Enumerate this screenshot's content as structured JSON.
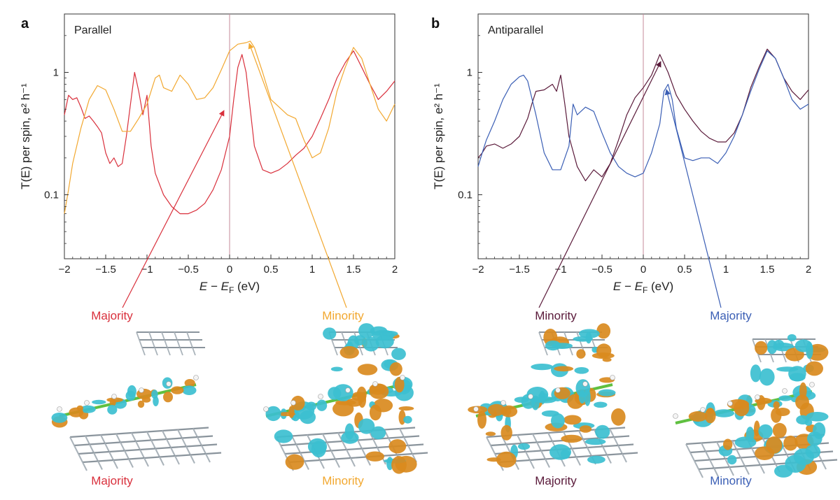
{
  "colors": {
    "red": "#d9303c",
    "orange": "#f2a830",
    "maroon": "#5a1a3a",
    "blue": "#3b5fb5",
    "cyan": "#3cbfd0",
    "gold": "#d98a1e"
  },
  "chart_data": [
    {
      "type": "line",
      "panel_letter": "a",
      "panel_title": "Parallel",
      "xlabel_prefix": "E − E",
      "xlabel_sub": "F",
      "xlabel_suffix": " (eV)",
      "ylabel_text": "T(E) per spin, e² h⁻¹",
      "xlim": [
        -2,
        2
      ],
      "ylim": [
        0.03,
        3
      ],
      "yscale": "log",
      "xticks": [
        "−2",
        "−1.5",
        "−1",
        "−0.5",
        "0",
        "0.5",
        "1",
        "1.5",
        "2"
      ],
      "yticks": [
        "0.1",
        "1"
      ],
      "fermi_line_x": 0,
      "series": [
        {
          "color": "#d9303c",
          "x": [
            -2.0,
            -1.95,
            -1.9,
            -1.85,
            -1.8,
            -1.75,
            -1.7,
            -1.65,
            -1.6,
            -1.55,
            -1.5,
            -1.45,
            -1.4,
            -1.35,
            -1.3,
            -1.25,
            -1.2,
            -1.15,
            -1.1,
            -1.05,
            -1.0,
            -0.95,
            -0.9,
            -0.8,
            -0.7,
            -0.6,
            -0.5,
            -0.4,
            -0.3,
            -0.2,
            -0.1,
            0.0,
            0.05,
            0.1,
            0.15,
            0.2,
            0.25,
            0.3,
            0.4,
            0.5,
            0.6,
            0.7,
            0.8,
            0.9,
            1.0,
            1.1,
            1.2,
            1.3,
            1.4,
            1.5,
            1.6,
            1.7,
            1.8,
            1.9,
            2.0
          ],
          "y": [
            0.45,
            0.65,
            0.6,
            0.62,
            0.52,
            0.42,
            0.44,
            0.4,
            0.36,
            0.32,
            0.22,
            0.18,
            0.2,
            0.17,
            0.18,
            0.3,
            0.55,
            1.0,
            0.7,
            0.45,
            0.65,
            0.25,
            0.15,
            0.1,
            0.08,
            0.07,
            0.07,
            0.075,
            0.085,
            0.11,
            0.16,
            0.3,
            0.6,
            1.1,
            1.4,
            1.0,
            0.5,
            0.25,
            0.16,
            0.15,
            0.16,
            0.18,
            0.21,
            0.24,
            0.3,
            0.42,
            0.6,
            0.9,
            1.2,
            1.5,
            1.1,
            0.8,
            0.6,
            0.7,
            0.85
          ]
        },
        {
          "color": "#f2a830",
          "x": [
            -2.0,
            -1.95,
            -1.9,
            -1.8,
            -1.7,
            -1.6,
            -1.5,
            -1.4,
            -1.3,
            -1.2,
            -1.1,
            -1.0,
            -0.9,
            -0.85,
            -0.8,
            -0.7,
            -0.6,
            -0.5,
            -0.4,
            -0.3,
            -0.2,
            -0.1,
            0.0,
            0.1,
            0.2,
            0.25,
            0.3,
            0.4,
            0.5,
            0.6,
            0.7,
            0.8,
            0.9,
            1.0,
            1.1,
            1.2,
            1.3,
            1.4,
            1.5,
            1.6,
            1.7,
            1.8,
            1.9,
            2.0
          ],
          "y": [
            0.07,
            0.11,
            0.18,
            0.35,
            0.6,
            0.78,
            0.72,
            0.5,
            0.33,
            0.33,
            0.42,
            0.55,
            0.9,
            0.95,
            0.75,
            0.7,
            0.95,
            0.8,
            0.6,
            0.62,
            0.75,
            1.05,
            1.5,
            1.7,
            1.75,
            1.8,
            1.6,
            1.0,
            0.6,
            0.52,
            0.45,
            0.42,
            0.28,
            0.2,
            0.22,
            0.35,
            0.7,
            1.1,
            1.6,
            1.3,
            0.8,
            0.5,
            0.4,
            0.55
          ]
        }
      ],
      "molecules": [
        {
          "label_top": "Majority",
          "label_bottom": "Majority",
          "color": "#d9303c"
        },
        {
          "label_top": "Minority",
          "label_bottom": "Minority",
          "color": "#f2a830"
        }
      ]
    },
    {
      "type": "line",
      "panel_letter": "b",
      "panel_title": "Antiparallel",
      "xlabel_prefix": "E − E",
      "xlabel_sub": "F",
      "xlabel_suffix": " (eV)",
      "ylabel_text": "T(E) per spin, e² h⁻¹",
      "xlim": [
        -2,
        2
      ],
      "ylim": [
        0.03,
        3
      ],
      "yscale": "log",
      "xticks": [
        "−2",
        "−1.5",
        "−1",
        "−0.5",
        "0",
        "0.5",
        "1",
        "1.5",
        "2"
      ],
      "yticks": [
        "0.1",
        "1"
      ],
      "fermi_line_x": 0,
      "series": [
        {
          "color": "#5a1a3a",
          "x": [
            -2.0,
            -1.95,
            -1.9,
            -1.8,
            -1.7,
            -1.6,
            -1.5,
            -1.4,
            -1.35,
            -1.3,
            -1.2,
            -1.1,
            -1.05,
            -1.0,
            -0.95,
            -0.9,
            -0.8,
            -0.7,
            -0.6,
            -0.5,
            -0.4,
            -0.3,
            -0.2,
            -0.1,
            0.0,
            0.1,
            0.2,
            0.3,
            0.4,
            0.5,
            0.6,
            0.7,
            0.8,
            0.9,
            1.0,
            1.1,
            1.2,
            1.3,
            1.4,
            1.5,
            1.6,
            1.7,
            1.8,
            1.9,
            2.0
          ],
          "y": [
            0.2,
            0.22,
            0.25,
            0.26,
            0.24,
            0.26,
            0.3,
            0.42,
            0.55,
            0.7,
            0.72,
            0.8,
            0.7,
            0.95,
            0.55,
            0.3,
            0.17,
            0.13,
            0.16,
            0.14,
            0.18,
            0.28,
            0.45,
            0.62,
            0.75,
            0.95,
            1.4,
            1.0,
            0.65,
            0.5,
            0.4,
            0.33,
            0.29,
            0.27,
            0.27,
            0.32,
            0.45,
            0.75,
            1.1,
            1.55,
            1.3,
            0.9,
            0.7,
            0.6,
            0.72
          ]
        },
        {
          "color": "#3b5fb5",
          "x": [
            -2.0,
            -1.95,
            -1.9,
            -1.8,
            -1.7,
            -1.6,
            -1.5,
            -1.45,
            -1.4,
            -1.3,
            -1.2,
            -1.1,
            -1.0,
            -0.9,
            -0.85,
            -0.8,
            -0.7,
            -0.6,
            -0.5,
            -0.4,
            -0.3,
            -0.2,
            -0.1,
            0.0,
            0.1,
            0.2,
            0.25,
            0.3,
            0.35,
            0.4,
            0.5,
            0.6,
            0.7,
            0.8,
            0.9,
            1.0,
            1.1,
            1.2,
            1.3,
            1.4,
            1.5,
            1.6,
            1.7,
            1.8,
            1.9,
            2.0
          ],
          "y": [
            0.17,
            0.22,
            0.28,
            0.4,
            0.6,
            0.8,
            0.92,
            0.95,
            0.85,
            0.45,
            0.22,
            0.16,
            0.16,
            0.25,
            0.55,
            0.45,
            0.52,
            0.48,
            0.32,
            0.22,
            0.17,
            0.15,
            0.14,
            0.15,
            0.22,
            0.38,
            0.7,
            0.8,
            0.6,
            0.35,
            0.2,
            0.19,
            0.2,
            0.2,
            0.18,
            0.22,
            0.3,
            0.45,
            0.7,
            1.05,
            1.5,
            1.3,
            0.9,
            0.6,
            0.5,
            0.55
          ]
        }
      ],
      "molecules": [
        {
          "label_top": "Minority",
          "label_bottom": "Majority",
          "color": "#5a1a3a"
        },
        {
          "label_top": "Majority",
          "label_bottom": "Minority",
          "color": "#3b5fb5"
        }
      ]
    }
  ]
}
